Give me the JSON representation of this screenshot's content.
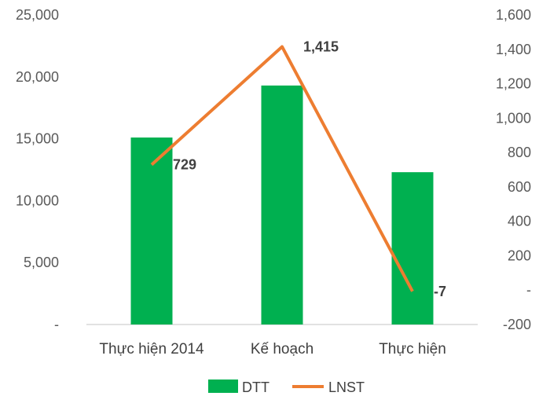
{
  "chart_data": {
    "type": "bar",
    "categories": [
      "Thực hiện 2014",
      "Kế hoạch",
      "Thực hiện"
    ],
    "series": [
      {
        "name": "DTT",
        "type": "bar",
        "axis": "left",
        "values": [
          15100,
          19300,
          12300
        ],
        "color": "#00b050"
      },
      {
        "name": "LNST",
        "type": "line",
        "axis": "right",
        "values": [
          729,
          1415,
          -7
        ],
        "color": "#ed7d31"
      }
    ],
    "data_labels": [
      "729",
      "1,415",
      "-7"
    ],
    "y_left": {
      "ylim": [
        0,
        25000
      ],
      "ticks": [
        0,
        5000,
        10000,
        15000,
        20000,
        25000
      ],
      "tick_labels": [
        "-",
        "5,000",
        "10,000",
        "15,000",
        "20,000",
        "25,000"
      ]
    },
    "y_right": {
      "ylim": [
        -200,
        1600
      ],
      "ticks": [
        -200,
        0,
        200,
        400,
        600,
        800,
        1000,
        1200,
        1400,
        1600
      ],
      "tick_labels": [
        "-200",
        "-",
        "200",
        "400",
        "600",
        "800",
        "1,000",
        "1,200",
        "1,400",
        "1,600"
      ]
    },
    "grid": false,
    "legend_position": "bottom",
    "title": "",
    "xlabel": "",
    "ylabel": ""
  }
}
